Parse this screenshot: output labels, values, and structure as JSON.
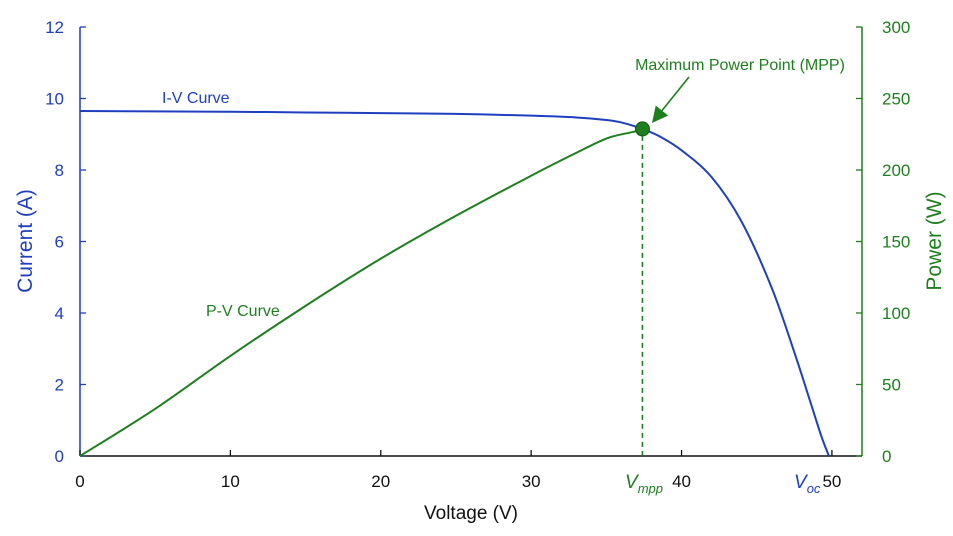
{
  "chart_data": {
    "type": "line",
    "xlabel": "Voltage (V)",
    "ylabel_left": "Current (A)",
    "ylabel_right": "Power (W)",
    "xlim": [
      0,
      52
    ],
    "ylim_left": [
      0,
      12
    ],
    "ylim_right": [
      0,
      300
    ],
    "x_ticks": [
      "0",
      "10",
      "20",
      "30",
      "40",
      "50"
    ],
    "y_left_ticks": [
      "0",
      "2",
      "4",
      "6",
      "8",
      "10",
      "12"
    ],
    "y_right_ticks": [
      "0",
      "50",
      "100",
      "150",
      "200",
      "250",
      "300"
    ],
    "series": [
      {
        "name": "I-V Curve",
        "axis": "left",
        "color": "#1f3fbf",
        "x": [
          0,
          5,
          10,
          15,
          20,
          25,
          30,
          33,
          35,
          36,
          37.4,
          38.5,
          40,
          42,
          44,
          46,
          47.5,
          48.5,
          49.3,
          49.8
        ],
        "y": [
          9.65,
          9.64,
          9.63,
          9.61,
          9.59,
          9.57,
          9.52,
          9.47,
          9.4,
          9.33,
          9.15,
          8.95,
          8.55,
          7.8,
          6.55,
          4.7,
          2.9,
          1.6,
          0.55,
          0.0
        ]
      },
      {
        "name": "P-V Curve",
        "axis": "right",
        "color": "#1e7f1e",
        "x": [
          0,
          5,
          10,
          15,
          20,
          25,
          30,
          33,
          35,
          36.5,
          37.4
        ],
        "y": [
          0,
          33,
          70,
          105,
          138,
          168,
          196,
          212,
          222,
          226,
          228
        ]
      }
    ],
    "annotations": {
      "mpp_label": "Maximum Power Point (MPP)",
      "mpp_x": 37.4,
      "mpp_current": 9.15,
      "vmpp_label_main": "V",
      "vmpp_label_sub": "mpp",
      "voc_label_main": "V",
      "voc_label_sub": "oc",
      "voc_x": 49.8
    }
  }
}
